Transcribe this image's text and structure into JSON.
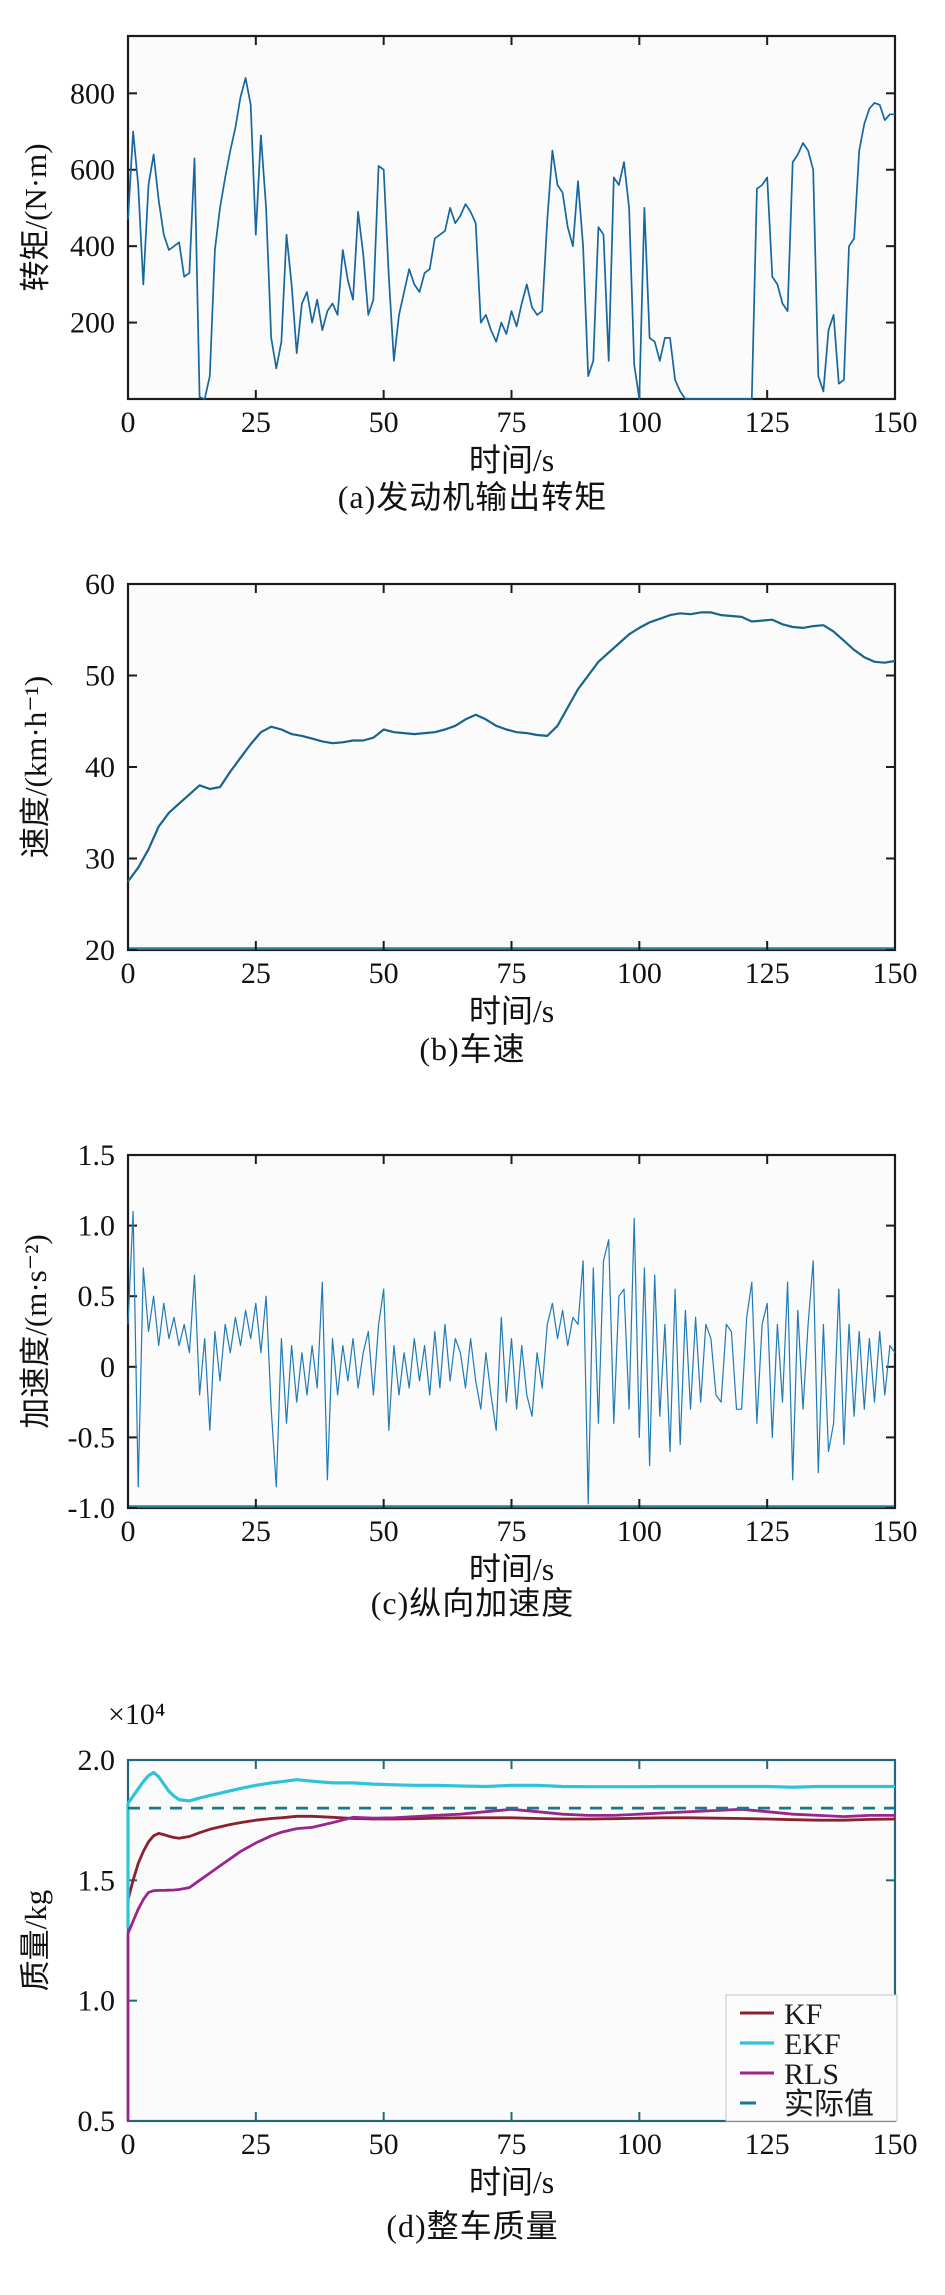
{
  "page": {
    "background": "#ffffff",
    "xlabel_shared": "时间/s"
  },
  "chart_data": [
    {
      "id": "engine-output-torque",
      "type": "line",
      "caption": "(a)发动机输出转矩",
      "xlabel": "时间/s",
      "ylabel": "转矩/(N·m)",
      "xlim": [
        0,
        150
      ],
      "ylim": [
        0,
        950
      ],
      "xticks": [
        0,
        25,
        50,
        75,
        100,
        125,
        150
      ],
      "xtick_labels": [
        "0",
        "25",
        "50",
        "75",
        "100",
        "125",
        "150"
      ],
      "yticks": [
        200,
        400,
        600,
        800
      ],
      "ytick_labels": [
        "200",
        "400",
        "600",
        "800"
      ],
      "grid": false,
      "frame_color": "#1c1c1c",
      "legend": false,
      "series": [
        {
          "name": "转矩",
          "color": "#1666a0",
          "width": 1.7,
          "x0": 0,
          "x_step": 1,
          "y": [
            470,
            700,
            560,
            300,
            560,
            640,
            520,
            430,
            390,
            400,
            410,
            320,
            330,
            630,
            5,
            0,
            60,
            390,
            500,
            580,
            650,
            710,
            790,
            840,
            770,
            430,
            690,
            500,
            160,
            80,
            150,
            430,
            300,
            120,
            250,
            280,
            200,
            260,
            180,
            230,
            250,
            220,
            390,
            310,
            260,
            490,
            380,
            220,
            260,
            610,
            600,
            320,
            100,
            220,
            280,
            340,
            300,
            280,
            330,
            340,
            420,
            430,
            440,
            500,
            460,
            480,
            510,
            490,
            460,
            200,
            220,
            180,
            150,
            200,
            170,
            230,
            190,
            250,
            300,
            240,
            220,
            230,
            470,
            650,
            560,
            540,
            450,
            400,
            570,
            400,
            60,
            100,
            450,
            430,
            100,
            580,
            560,
            620,
            500,
            90,
            0,
            500,
            160,
            150,
            100,
            160,
            160,
            50,
            20,
            0,
            0,
            0,
            0,
            0,
            0,
            0,
            0,
            0,
            0,
            0,
            0,
            0,
            0,
            550,
            560,
            580,
            320,
            300,
            250,
            230,
            620,
            640,
            670,
            650,
            600,
            60,
            20,
            180,
            220,
            40,
            50,
            400,
            420,
            650,
            720,
            760,
            775,
            770,
            730,
            745,
            745
          ]
        }
      ]
    },
    {
      "id": "vehicle-speed",
      "type": "line",
      "caption": "(b)车速",
      "xlabel": "时间/s",
      "ylabel": "速度/(km·h⁻¹)",
      "xlim": [
        0,
        150
      ],
      "ylim": [
        20,
        60
      ],
      "xticks": [
        0,
        25,
        50,
        75,
        100,
        125,
        150
      ],
      "xtick_labels": [
        "0",
        "25",
        "50",
        "75",
        "100",
        "125",
        "150"
      ],
      "yticks": [
        20,
        30,
        40,
        50,
        60
      ],
      "ytick_labels": [
        "20",
        "30",
        "40",
        "50",
        "60"
      ],
      "grid": false,
      "frame_color": "#1c1c1c",
      "legend": false,
      "series": [
        {
          "name": "车速",
          "color": "#17658c",
          "width": 2.2,
          "x0": 0,
          "x_step": 2,
          "y": [
            27.5,
            29,
            31,
            33.5,
            35,
            36,
            37,
            38,
            37.6,
            37.8,
            39.5,
            41,
            42.5,
            43.8,
            44.4,
            44.1,
            43.6,
            43.4,
            43.1,
            42.8,
            42.6,
            42.7,
            42.9,
            42.9,
            43.2,
            44.1,
            43.8,
            43.7,
            43.6,
            43.7,
            43.8,
            44.1,
            44.5,
            45.2,
            45.7,
            45.2,
            44.5,
            44.1,
            43.8,
            43.7,
            43.5,
            43.4,
            44.5,
            46.5,
            48.5,
            50,
            51.5,
            52.5,
            53.5,
            54.5,
            55.2,
            55.8,
            56.2,
            56.6,
            56.8,
            56.7,
            56.9,
            56.9,
            56.6,
            56.5,
            56.4,
            55.9,
            56.0,
            56.1,
            55.6,
            55.3,
            55.2,
            55.4,
            55.5,
            54.8,
            53.8,
            52.8,
            52.0,
            51.5,
            51.4,
            51.6
          ]
        }
      ]
    },
    {
      "id": "longitudinal-acceleration",
      "type": "line",
      "caption": "(c)纵向加速度",
      "xlabel": "时间/s",
      "ylabel": "加速度/(m·s⁻²)",
      "xlim": [
        0,
        150
      ],
      "ylim": [
        -1.0,
        1.5
      ],
      "xticks": [
        0,
        25,
        50,
        75,
        100,
        125,
        150
      ],
      "xtick_labels": [
        "0",
        "25",
        "50",
        "75",
        "100",
        "125",
        "150"
      ],
      "yticks": [
        -1.0,
        -0.5,
        0,
        0.5,
        1.0,
        1.5
      ],
      "ytick_labels": [
        "-1.0",
        "-0.5",
        "0",
        "0.5",
        "1.0",
        "1.5"
      ],
      "grid": false,
      "frame_color": "#1c1c1c",
      "legend": false,
      "series": [
        {
          "name": "加速度",
          "color": "#1f7ab5",
          "width": 1.2,
          "x0": 0,
          "x_step": 1,
          "y": [
            0.3,
            1.1,
            -0.85,
            0.7,
            0.25,
            0.5,
            0.15,
            0.45,
            0.2,
            0.35,
            0.15,
            0.3,
            0.1,
            0.65,
            -0.2,
            0.2,
            -0.45,
            0.25,
            -0.1,
            0.3,
            0.1,
            0.35,
            0.15,
            0.4,
            0.2,
            0.45,
            0.1,
            0.5,
            -0.3,
            -0.85,
            0.2,
            -0.4,
            0.15,
            -0.25,
            0.1,
            -0.2,
            0.15,
            -0.15,
            0.6,
            -0.8,
            0.2,
            -0.2,
            0.15,
            -0.1,
            0.2,
            -0.15,
            0.1,
            0.25,
            -0.2,
            0.3,
            0.55,
            -0.45,
            0.15,
            -0.2,
            0.1,
            -0.15,
            0.2,
            -0.1,
            0.15,
            -0.2,
            0.25,
            -0.15,
            0.3,
            -0.1,
            0.2,
            0.1,
            -0.15,
            0.2,
            -0.1,
            -0.3,
            0.1,
            -0.2,
            -0.45,
            0.35,
            -0.25,
            0.2,
            -0.3,
            0.15,
            -0.2,
            -0.35,
            0.1,
            -0.15,
            0.3,
            0.45,
            0.2,
            0.4,
            0.15,
            0.35,
            0.3,
            0.75,
            -0.97,
            0.7,
            -0.4,
            0.75,
            0.9,
            -0.4,
            0.5,
            0.55,
            -0.3,
            1.05,
            -0.5,
            0.7,
            -0.7,
            0.65,
            -0.35,
            0.3,
            -0.6,
            0.55,
            -0.55,
            0.4,
            -0.3,
            0.35,
            -0.25,
            0.3,
            0.2,
            -0.2,
            -0.25,
            0.3,
            0.25,
            -0.3,
            -0.3,
            0.35,
            0.6,
            -0.4,
            0.3,
            0.45,
            -0.5,
            0.3,
            -0.25,
            0.6,
            -0.8,
            0.4,
            -0.3,
            0.3,
            0.75,
            -0.75,
            0.3,
            -0.6,
            -0.4,
            0.55,
            -0.55,
            0.3,
            -0.35,
            0.25,
            -0.3,
            0.2,
            -0.25,
            0.25,
            -0.2,
            0.15,
            0.1
          ]
        }
      ]
    },
    {
      "id": "vehicle-mass",
      "type": "line",
      "caption": "(d)整车质量",
      "xlabel": "时间/s",
      "ylabel": "质量/kg",
      "offset_text": "×10⁴",
      "xlim": [
        0,
        150
      ],
      "ylim": [
        0.5,
        2.0
      ],
      "xticks": [
        0,
        25,
        50,
        75,
        100,
        125,
        150
      ],
      "xtick_labels": [
        "0",
        "25",
        "50",
        "75",
        "100",
        "125",
        "150"
      ],
      "yticks": [
        0.5,
        1.0,
        1.5,
        2.0
      ],
      "ytick_labels": [
        "0.5",
        "1.0",
        "1.5",
        "2.0"
      ],
      "grid": false,
      "frame_color": "#23677a",
      "legend": true,
      "actual_value": 1.8,
      "series": [
        {
          "name": "KF",
          "color": "#8a2030",
          "width": 2.8,
          "x": [
            0,
            1,
            2,
            3,
            4,
            5,
            6,
            7,
            8,
            9,
            10,
            12,
            14,
            16,
            18,
            20,
            22,
            25,
            28,
            30,
            33,
            36,
            40,
            44,
            48,
            52,
            56,
            60,
            65,
            70,
            75,
            80,
            85,
            90,
            95,
            100,
            105,
            110,
            115,
            120,
            125,
            130,
            135,
            140,
            145,
            150
          ],
          "y": [
            1.42,
            1.5,
            1.57,
            1.62,
            1.66,
            1.685,
            1.695,
            1.69,
            1.683,
            1.678,
            1.675,
            1.682,
            1.698,
            1.712,
            1.722,
            1.732,
            1.74,
            1.75,
            1.757,
            1.76,
            1.766,
            1.766,
            1.762,
            1.757,
            1.755,
            1.755,
            1.756,
            1.758,
            1.76,
            1.76,
            1.76,
            1.757,
            1.755,
            1.755,
            1.756,
            1.758,
            1.76,
            1.76,
            1.758,
            1.757,
            1.755,
            1.752,
            1.75,
            1.75,
            1.753,
            1.755
          ]
        },
        {
          "name": "EKF",
          "color": "#2fc3da",
          "width": 3.2,
          "x": [
            0,
            0,
            1,
            2,
            3,
            4,
            5,
            6,
            7,
            8,
            9,
            10,
            12,
            14,
            16,
            18,
            20,
            22,
            25,
            28,
            30,
            33,
            36,
            40,
            44,
            48,
            52,
            56,
            60,
            65,
            70,
            75,
            80,
            85,
            90,
            95,
            100,
            105,
            110,
            115,
            120,
            125,
            130,
            135,
            140,
            145,
            150
          ],
          "y": [
            1.3,
            1.82,
            1.85,
            1.88,
            1.91,
            1.935,
            1.948,
            1.93,
            1.9,
            1.87,
            1.85,
            1.835,
            1.83,
            1.842,
            1.852,
            1.862,
            1.872,
            1.882,
            1.895,
            1.905,
            1.91,
            1.918,
            1.912,
            1.905,
            1.905,
            1.9,
            1.897,
            1.895,
            1.895,
            1.892,
            1.89,
            1.895,
            1.895,
            1.89,
            1.889,
            1.889,
            1.889,
            1.89,
            1.89,
            1.89,
            1.89,
            1.89,
            1.887,
            1.89,
            1.89,
            1.89,
            1.89
          ]
        },
        {
          "name": "RLS",
          "color": "#98268f",
          "width": 2.8,
          "x": [
            0,
            0,
            1,
            2,
            3,
            4,
            5,
            6,
            7,
            8,
            9,
            10,
            12,
            14,
            16,
            18,
            20,
            22,
            25,
            28,
            30,
            33,
            36,
            40,
            44,
            48,
            52,
            56,
            60,
            65,
            70,
            75,
            80,
            85,
            90,
            95,
            100,
            105,
            110,
            115,
            120,
            125,
            130,
            135,
            140,
            145,
            150
          ],
          "y": [
            0.5,
            1.28,
            1.33,
            1.38,
            1.42,
            1.45,
            1.457,
            1.458,
            1.458,
            1.459,
            1.46,
            1.462,
            1.47,
            1.5,
            1.53,
            1.56,
            1.59,
            1.62,
            1.655,
            1.685,
            1.7,
            1.715,
            1.72,
            1.74,
            1.762,
            1.758,
            1.76,
            1.765,
            1.77,
            1.775,
            1.785,
            1.795,
            1.785,
            1.775,
            1.77,
            1.77,
            1.775,
            1.78,
            1.785,
            1.79,
            1.795,
            1.785,
            1.775,
            1.77,
            1.765,
            1.77,
            1.77
          ]
        },
        {
          "name": "实际值",
          "color": "#15798f",
          "width": 2.8,
          "dash": "12 9",
          "x": [
            0,
            150
          ],
          "y": [
            1.8,
            1.8
          ]
        }
      ]
    }
  ]
}
